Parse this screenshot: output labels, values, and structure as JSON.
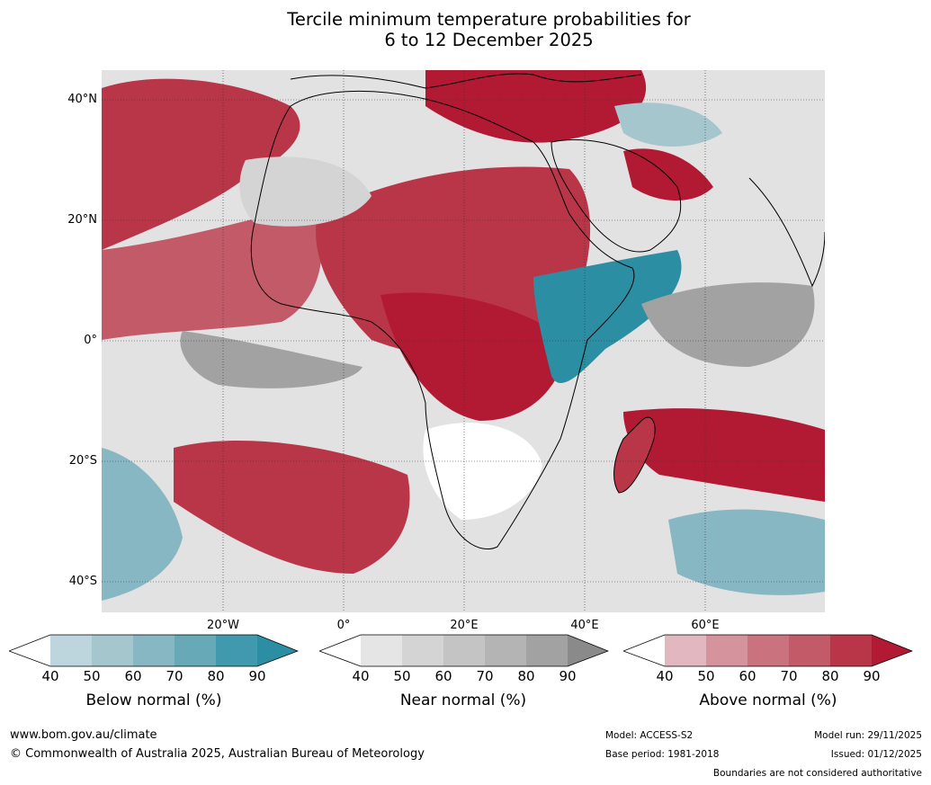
{
  "title": {
    "line1": "Tercile minimum temperature probabilities for",
    "line2": "6 to 12 December 2025"
  },
  "map": {
    "lat_labels": [
      "40°N",
      "20°N",
      "0°",
      "20°S",
      "40°S"
    ],
    "lon_labels": [
      "20°W",
      "0°",
      "20°E",
      "40°E",
      "60°E"
    ]
  },
  "legend": {
    "ticks": [
      "40",
      "50",
      "60",
      "70",
      "80",
      "90"
    ],
    "below": {
      "label": "Below normal (%)",
      "colors": [
        "#ffffff",
        "#bdd5dc",
        "#a6c6ce",
        "#87b7c2",
        "#67a9b6",
        "#4199ad",
        "#2b8ea2"
      ]
    },
    "near": {
      "label": "Near normal (%)",
      "colors": [
        "#ffffff",
        "#e5e5e5",
        "#d4d4d4",
        "#c4c4c4",
        "#b4b4b4",
        "#a2a2a2",
        "#8a8a8a"
      ]
    },
    "above": {
      "label": "Above normal (%)",
      "colors": [
        "#ffffff",
        "#e2b7bf",
        "#d5939e",
        "#cb727f",
        "#c25a68",
        "#b93649",
        "#b21a34"
      ]
    }
  },
  "footer": {
    "website": "www.bom.gov.au/climate",
    "copyright": "© Commonwealth of Australia 2025, Australian Bureau of Meteorology",
    "model": "Model: ACCESS-S2",
    "base_period": "Base period: 1981-2018",
    "model_run": "Model run: 29/11/2025",
    "issued": "Issued: 01/12/2025",
    "disclaimer": "Boundaries are not considered authoritative"
  }
}
